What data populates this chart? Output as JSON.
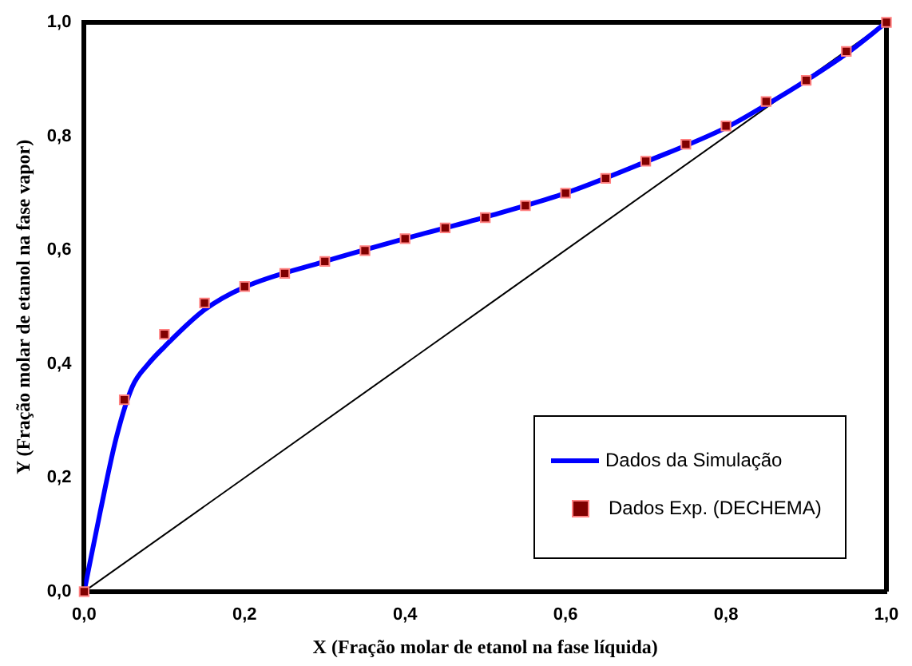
{
  "chart_data": {
    "type": "line",
    "xlabel": "X (Fração molar de etanol na fase líquida)",
    "ylabel": "Y (Fração molar de etanol na fase vapor)",
    "xlim": [
      0,
      1
    ],
    "ylim": [
      0,
      1
    ],
    "xticks": [
      {
        "value": 0,
        "label": "0,0"
      },
      {
        "value": 0.2,
        "label": "0,2"
      },
      {
        "value": 0.4,
        "label": "0,4"
      },
      {
        "value": 0.6,
        "label": "0,6"
      },
      {
        "value": 0.8,
        "label": "0,8"
      },
      {
        "value": 1,
        "label": "1,0"
      }
    ],
    "yticks": [
      {
        "value": 0,
        "label": "0,0"
      },
      {
        "value": 0.2,
        "label": "0,2"
      },
      {
        "value": 0.4,
        "label": "0,4"
      },
      {
        "value": 0.6,
        "label": "0,6"
      },
      {
        "value": 0.8,
        "label": "0,8"
      },
      {
        "value": 1,
        "label": "1,0"
      }
    ],
    "grid": false,
    "legend": "bottom right",
    "series": [
      {
        "name": "Dados da Simulação",
        "type": "line",
        "color": "#0000ff",
        "marker": "none",
        "x": [
          0,
          0.02,
          0.04,
          0.06,
          0.08,
          0.1,
          0.15,
          0.2,
          0.3,
          0.4,
          0.5,
          0.6,
          0.7,
          0.8,
          0.85,
          0.9,
          0.95,
          1
        ],
        "values": [
          0,
          0.14,
          0.27,
          0.36,
          0.4,
          0.43,
          0.495,
          0.535,
          0.58,
          0.62,
          0.658,
          0.7,
          0.755,
          0.815,
          0.855,
          0.898,
          0.945,
          1
        ]
      },
      {
        "name": "Dados Exp. (DECHEMA)",
        "type": "scatter",
        "color": "#800000",
        "marker": "square",
        "x": [
          0,
          0.05,
          0.1,
          0.15,
          0.2,
          0.25,
          0.3,
          0.35,
          0.4,
          0.45,
          0.5,
          0.55,
          0.6,
          0.65,
          0.7,
          0.75,
          0.8,
          0.85,
          0.9,
          0.95,
          1
        ],
        "values": [
          0,
          0.337,
          0.452,
          0.507,
          0.536,
          0.559,
          0.58,
          0.599,
          0.62,
          0.639,
          0.657,
          0.678,
          0.7,
          0.726,
          0.756,
          0.786,
          0.818,
          0.861,
          0.898,
          0.949,
          1
        ]
      },
      {
        "type": "line",
        "color": "#000000",
        "marker": "none",
        "x": [
          0,
          1
        ],
        "values": [
          0,
          1
        ]
      }
    ]
  }
}
